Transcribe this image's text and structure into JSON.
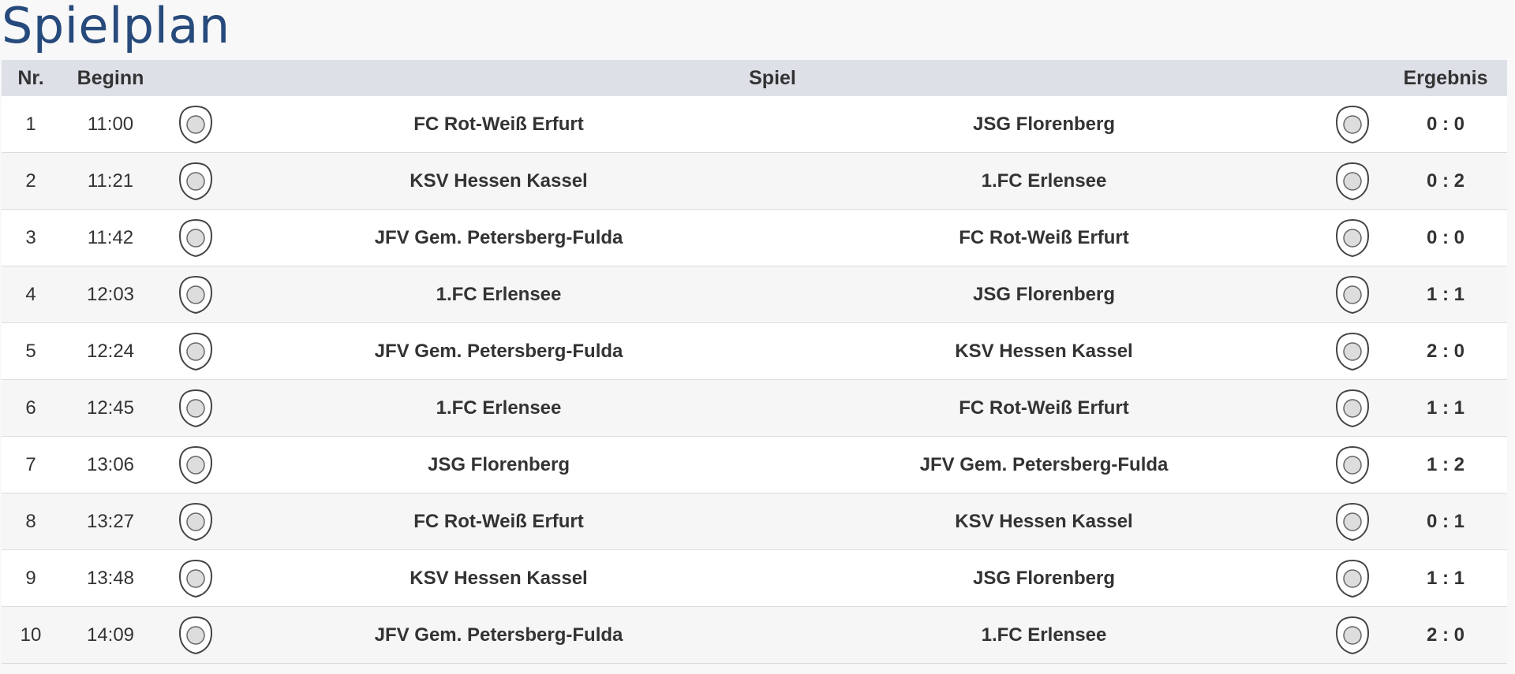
{
  "title": "Spielplan",
  "table": {
    "headers": [
      "Nr.",
      "Beginn",
      "Spiel",
      "Ergebnis"
    ],
    "rows": [
      [
        "1",
        "11:00",
        "FC Rot-Weiß Erfurt",
        "JSG Florenberg",
        "0 : 0"
      ],
      [
        "2",
        "11:21",
        "KSV Hessen Kassel",
        "1.FC Erlensee",
        "0 : 2"
      ],
      [
        "3",
        "11:42",
        "JFV Gem. Petersberg-Fulda",
        "FC Rot-Weiß Erfurt",
        "0 : 0"
      ],
      [
        "4",
        "12:03",
        "1.FC Erlensee",
        "JSG Florenberg",
        "1 : 1"
      ],
      [
        "5",
        "12:24",
        "JFV Gem. Petersberg-Fulda",
        "KSV Hessen Kassel",
        "2 : 0"
      ],
      [
        "6",
        "12:45",
        "1.FC Erlensee",
        "FC Rot-Weiß Erfurt",
        "1 : 1"
      ],
      [
        "7",
        "13:06",
        "JSG Florenberg",
        "JFV Gem. Petersberg-Fulda",
        "1 : 2"
      ],
      [
        "8",
        "13:27",
        "FC Rot-Weiß Erfurt",
        "KSV Hessen Kassel",
        "0 : 1"
      ],
      [
        "9",
        "13:48",
        "KSV Hessen Kassel",
        "JSG Florenberg",
        "1 : 1"
      ],
      [
        "10",
        "14:09",
        "JFV Gem. Petersberg-Fulda",
        "1.FC Erlensee",
        "2 : 0"
      ]
    ]
  }
}
